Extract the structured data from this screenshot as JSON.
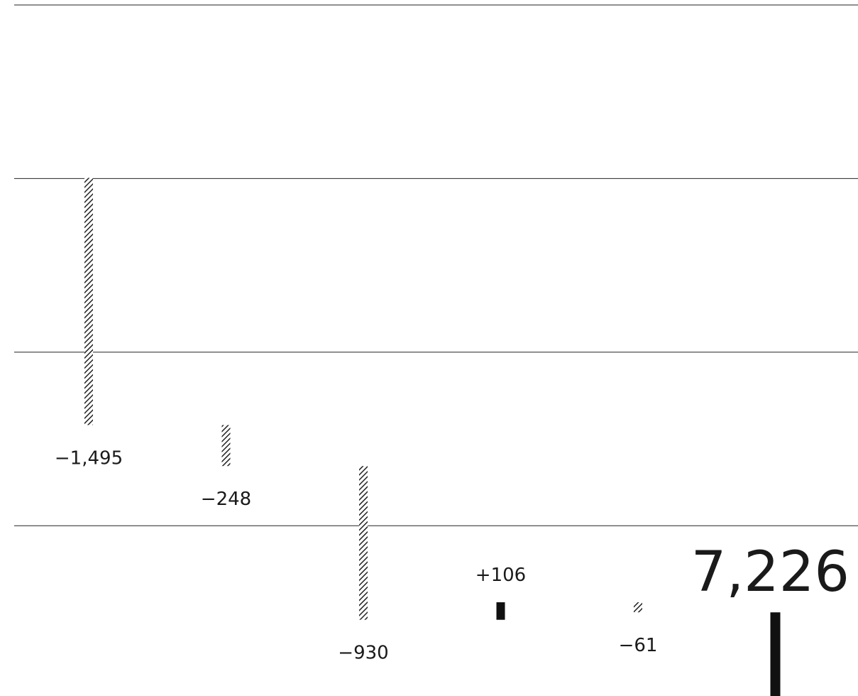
{
  "chart_data": {
    "type": "waterfall",
    "values": [
      -1495,
      -248,
      -930,
      106,
      -61
    ],
    "value_labels": [
      "−1,495",
      "−248",
      "−930",
      "+106",
      "−61"
    ],
    "total": 7226,
    "total_label": "7,226",
    "ylim": [
      6720,
      10930
    ],
    "yticks": [
      7750,
      8800,
      9850,
      10900
    ],
    "grid": true,
    "decrease_color": "#222222",
    "increase_color": "#111111",
    "total_color": "#111111"
  }
}
